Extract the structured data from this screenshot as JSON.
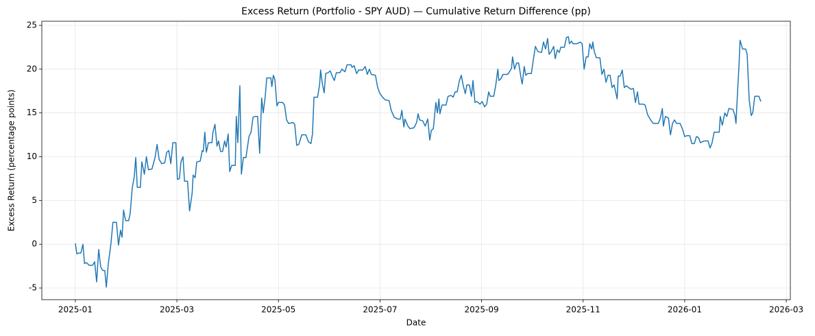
{
  "chart_data": {
    "type": "line",
    "title": "Excess Return (Portfolio - SPY AUD) — Cumulative Return Difference (pp)",
    "xlabel": "Date",
    "ylabel": "Excess Return (percentage points)",
    "grid": true,
    "xlim": [
      -0.66,
      14.08
    ],
    "ylim": [
      -6.33,
      25.47
    ],
    "xticks": [
      {
        "value": 0,
        "label": "2025-01"
      },
      {
        "value": 2,
        "label": "2025-03"
      },
      {
        "value": 4,
        "label": "2025-05"
      },
      {
        "value": 6,
        "label": "2025-07"
      },
      {
        "value": 8,
        "label": "2025-09"
      },
      {
        "value": 10,
        "label": "2025-11"
      },
      {
        "value": 12,
        "label": "2026-01"
      },
      {
        "value": 14,
        "label": "2026-03"
      }
    ],
    "yticks": [
      -5,
      0,
      5,
      10,
      15,
      20,
      25
    ],
    "x": [
      0,
      0.03,
      0.07,
      0.11,
      0.15,
      0.18,
      0.22,
      0.27,
      0.34,
      0.38,
      0.42,
      0.46,
      0.5,
      0.54,
      0.58,
      0.61,
      0.65,
      0.7,
      0.74,
      0.81,
      0.85,
      0.89,
      0.92,
      0.95,
      0.99,
      1.05,
      1.08,
      1.12,
      1.16,
      1.19,
      1.22,
      1.28,
      1.31,
      1.36,
      1.4,
      1.44,
      1.51,
      1.57,
      1.61,
      1.65,
      1.7,
      1.76,
      1.8,
      1.84,
      1.88,
      1.92,
      1.98,
      2.01,
      2.05,
      2.08,
      2.12,
      2.15,
      2.21,
      2.25,
      2.3,
      2.32,
      2.36,
      2.39,
      2.46,
      2.5,
      2.52,
      2.55,
      2.58,
      2.62,
      2.69,
      2.71,
      2.75,
      2.79,
      2.82,
      2.86,
      2.9,
      2.94,
      2.97,
      3.01,
      3.04,
      3.08,
      3.15,
      3.17,
      3.2,
      3.24,
      3.27,
      3.31,
      3.36,
      3.42,
      3.46,
      3.5,
      3.54,
      3.59,
      3.63,
      3.67,
      3.7,
      3.74,
      3.77,
      3.85,
      3.87,
      3.9,
      3.93,
      3.97,
      4.0,
      4.08,
      4.12,
      4.16,
      4.2,
      4.29,
      4.32,
      4.36,
      4.4,
      4.46,
      4.54,
      4.59,
      4.64,
      4.67,
      4.7,
      4.77,
      4.81,
      4.83,
      4.86,
      4.9,
      4.93,
      4.98,
      5.02,
      5.06,
      5.1,
      5.14,
      5.21,
      5.25,
      5.31,
      5.35,
      5.43,
      5.45,
      5.49,
      5.54,
      5.58,
      5.66,
      5.71,
      5.75,
      5.79,
      5.83,
      5.91,
      5.95,
      5.99,
      6.05,
      6.1,
      6.18,
      6.22,
      6.28,
      6.35,
      6.4,
      6.43,
      6.47,
      6.49,
      6.55,
      6.59,
      6.67,
      6.72,
      6.75,
      6.78,
      6.84,
      6.89,
      6.94,
      6.98,
      7.01,
      7.05,
      7.1,
      7.13,
      7.16,
      7.18,
      7.22,
      7.3,
      7.34,
      7.4,
      7.44,
      7.48,
      7.52,
      7.56,
      7.6,
      7.64,
      7.68,
      7.71,
      7.76,
      7.8,
      7.83,
      7.87,
      7.91,
      7.97,
      8.01,
      8.06,
      8.1,
      8.14,
      8.17,
      8.24,
      8.28,
      8.32,
      8.34,
      8.38,
      8.42,
      8.51,
      8.55,
      8.59,
      8.61,
      8.65,
      8.69,
      8.73,
      8.78,
      8.8,
      8.84,
      8.87,
      8.91,
      8.98,
      9.02,
      9.06,
      9.11,
      9.18,
      9.22,
      9.26,
      9.3,
      9.33,
      9.37,
      9.42,
      9.45,
      9.49,
      9.53,
      9.56,
      9.63,
      9.67,
      9.71,
      9.73,
      9.77,
      9.8,
      9.88,
      9.94,
      9.98,
      10.02,
      10.06,
      10.1,
      10.13,
      10.17,
      10.19,
      10.22,
      10.26,
      10.33,
      10.37,
      10.41,
      10.45,
      10.49,
      10.53,
      10.57,
      10.61,
      10.67,
      10.69,
      10.73,
      10.77,
      10.81,
      10.85,
      10.94,
      10.99,
      11.03,
      11.07,
      11.1,
      11.18,
      11.22,
      11.27,
      11.33,
      11.38,
      11.48,
      11.52,
      11.56,
      11.58,
      11.62,
      11.68,
      11.72,
      11.76,
      11.8,
      11.84,
      11.91,
      11.96,
      12.0,
      12.04,
      12.1,
      12.14,
      12.19,
      12.23,
      12.27,
      12.31,
      12.38,
      12.46,
      12.5,
      12.54,
      12.58,
      12.68,
      12.7,
      12.74,
      12.79,
      12.83,
      12.87,
      12.95,
      12.99,
      13.01,
      13.04,
      13.07,
      13.09,
      13.14,
      13.2,
      13.23,
      13.27,
      13.31,
      13.34,
      13.38,
      13.46,
      13.5
    ],
    "series": [
      {
        "name": "Excess Return",
        "color": "#1f77b4",
        "values": [
          0.1,
          -1.1,
          -1.0,
          -1.0,
          0.0,
          -2.2,
          -2.1,
          -2.4,
          -2.4,
          -2.0,
          -4.3,
          -0.6,
          -2.6,
          -3.0,
          -3.0,
          -4.9,
          -2.2,
          0.0,
          2.5,
          2.5,
          -0.1,
          1.6,
          0.8,
          3.9,
          2.7,
          2.7,
          3.5,
          6.4,
          7.7,
          9.9,
          6.5,
          6.5,
          9.4,
          8.0,
          10.0,
          8.5,
          8.6,
          9.9,
          11.4,
          9.7,
          9.2,
          9.3,
          10.5,
          10.7,
          9.2,
          11.6,
          11.6,
          7.4,
          7.5,
          9.4,
          10.0,
          7.2,
          7.2,
          3.8,
          5.8,
          7.9,
          7.6,
          9.4,
          9.5,
          10.7,
          10.6,
          12.8,
          10.5,
          11.6,
          11.6,
          12.8,
          13.7,
          11.2,
          11.8,
          10.6,
          10.6,
          11.8,
          11.1,
          12.6,
          8.3,
          9.0,
          9.0,
          14.6,
          11.6,
          18.1,
          8.0,
          9.9,
          9.9,
          12.3,
          12.8,
          14.5,
          14.6,
          14.6,
          10.4,
          16.7,
          15.0,
          16.9,
          19.0,
          19.0,
          18.0,
          19.3,
          18.8,
          15.8,
          16.2,
          16.2,
          15.9,
          14.2,
          13.8,
          13.9,
          13.7,
          11.3,
          11.4,
          12.5,
          12.5,
          11.7,
          11.5,
          12.6,
          16.8,
          16.8,
          18.2,
          19.9,
          18.5,
          17.3,
          19.5,
          19.6,
          19.8,
          19.2,
          18.7,
          19.6,
          19.6,
          20.0,
          19.7,
          20.5,
          20.5,
          20.2,
          20.4,
          19.5,
          19.9,
          19.9,
          20.3,
          19.4,
          20.0,
          19.4,
          19.3,
          18.0,
          17.3,
          16.8,
          16.5,
          16.4,
          15.3,
          14.5,
          14.3,
          14.3,
          15.3,
          13.4,
          14.3,
          13.5,
          13.2,
          13.3,
          13.9,
          14.9,
          14.2,
          14.1,
          13.5,
          14.3,
          11.9,
          13.0,
          13.2,
          16.2,
          15.0,
          16.6,
          14.9,
          15.9,
          15.9,
          16.9,
          17.0,
          16.8,
          17.4,
          17.4,
          18.6,
          19.3,
          18.1,
          17.2,
          18.2,
          18.2,
          16.9,
          18.7,
          16.2,
          16.3,
          16.0,
          16.3,
          15.7,
          16.0,
          17.4,
          16.9,
          16.9,
          18.2,
          20.0,
          18.7,
          18.9,
          19.4,
          19.4,
          19.7,
          20.1,
          21.4,
          20.0,
          20.7,
          20.7,
          18.9,
          18.3,
          20.3,
          19.3,
          19.5,
          19.5,
          21.1,
          22.6,
          22.0,
          21.9,
          23.1,
          22.3,
          23.5,
          21.7,
          22.0,
          22.6,
          21.2,
          22.2,
          21.9,
          22.5,
          22.5,
          23.6,
          23.7,
          22.9,
          23.2,
          22.9,
          22.9,
          23.1,
          22.9,
          20.0,
          21.4,
          21.4,
          22.9,
          22.3,
          23.1,
          22.0,
          21.3,
          21.3,
          19.4,
          20.0,
          18.5,
          19.3,
          19.3,
          17.9,
          18.2,
          16.6,
          19.2,
          19.2,
          19.9,
          17.9,
          18.1,
          17.7,
          17.8,
          16.2,
          17.4,
          16.0,
          16.0,
          15.9,
          14.8,
          14.2,
          13.8,
          13.8,
          14.4,
          15.5,
          13.5,
          14.6,
          14.4,
          12.5,
          13.8,
          14.2,
          13.8,
          13.8,
          13.1,
          12.3,
          12.4,
          12.4,
          11.5,
          11.5,
          12.3,
          12.2,
          11.6,
          11.8,
          11.8,
          11.0,
          11.6,
          12.8,
          12.8,
          14.6,
          13.6,
          15.0,
          14.6,
          15.5,
          15.4,
          14.7,
          13.8,
          17.3,
          20.5,
          23.3,
          22.3,
          22.3,
          21.7,
          16.5,
          14.7,
          15.0,
          16.9,
          16.9,
          16.3
        ]
      }
    ]
  }
}
